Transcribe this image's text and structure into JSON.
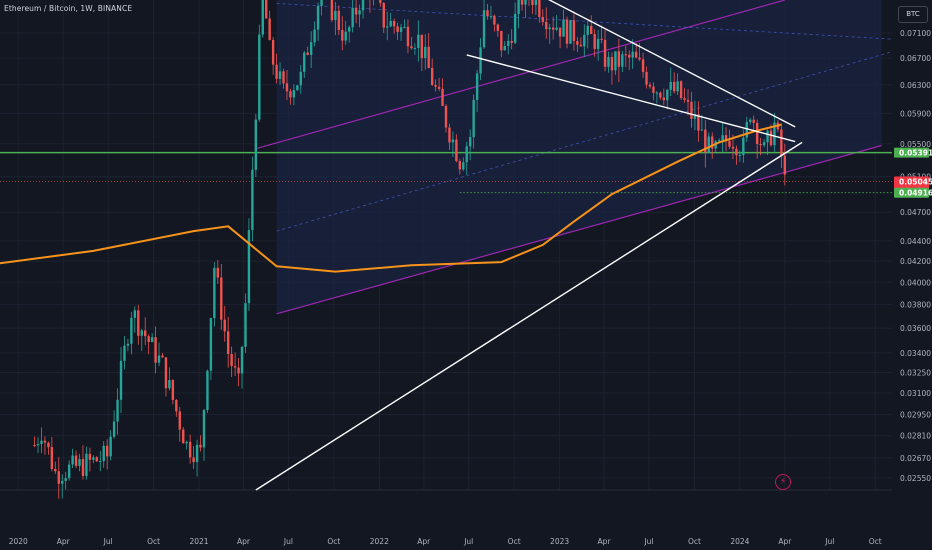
{
  "header": {
    "title": "Ethereum / Bitcoin, 1W, BINANCE",
    "currency": "BTC"
  },
  "colors": {
    "background": "#131722",
    "grid": "#1e2230",
    "up": "#26a69a",
    "down": "#ef5350",
    "ma": "#f7931a",
    "channel": "#9c27b0",
    "trend": "#ffffff",
    "support": "#4caf50",
    "channel_fill": "#1b2340"
  },
  "badges": {
    "support": {
      "label": "0.05391",
      "color": "#4caf50"
    },
    "current": {
      "label": "0.05045",
      "sub": "5d 19h",
      "color": "#f23645"
    },
    "low": {
      "label": "0.04916",
      "color": "#4caf50"
    }
  },
  "icons": {
    "flash": "flash-icon"
  },
  "chart_data": {
    "type": "candlestick",
    "title": "Ethereum / Bitcoin, 1W, BINANCE",
    "y_scale": "log",
    "ylim": [
      0.0248,
      0.0766
    ],
    "xlim": [
      "2019-11-25",
      "2024-11-04"
    ],
    "y_ticks": [
      "0.07100",
      "0.06700",
      "0.06300",
      "0.05900",
      "0.05500",
      "0.05100",
      "0.04700",
      "0.04400",
      "0.04200",
      "0.04000",
      "0.03800",
      "0.03600",
      "0.03400",
      "0.03250",
      "0.03100",
      "0.02950",
      "0.02810",
      "0.02670",
      "0.02550"
    ],
    "x_ticks": [
      {
        "label": "2020",
        "date": "2020-01-01"
      },
      {
        "label": "Apr",
        "date": "2020-04-01"
      },
      {
        "label": "Jul",
        "date": "2020-07-01"
      },
      {
        "label": "Oct",
        "date": "2020-10-01"
      },
      {
        "label": "2021",
        "date": "2021-01-01"
      },
      {
        "label": "Apr",
        "date": "2021-04-01"
      },
      {
        "label": "Jul",
        "date": "2021-07-01"
      },
      {
        "label": "Oct",
        "date": "2021-10-01"
      },
      {
        "label": "2022",
        "date": "2022-01-01"
      },
      {
        "label": "Apr",
        "date": "2022-04-01"
      },
      {
        "label": "Jul",
        "date": "2022-07-01"
      },
      {
        "label": "Oct",
        "date": "2022-10-01"
      },
      {
        "label": "2023",
        "date": "2023-01-01"
      },
      {
        "label": "Apr",
        "date": "2023-04-01"
      },
      {
        "label": "Jul",
        "date": "2023-07-01"
      },
      {
        "label": "Oct",
        "date": "2023-10-01"
      },
      {
        "label": "2024",
        "date": "2024-01-01"
      },
      {
        "label": "Apr",
        "date": "2024-04-01"
      },
      {
        "label": "Jul",
        "date": "2024-07-01"
      },
      {
        "label": "Oct",
        "date": "2024-10-01"
      }
    ],
    "candle_path": [
      [
        "2020-02-03",
        0.0275
      ],
      [
        "2020-02-17",
        0.0285
      ],
      [
        "2020-03-16",
        0.0258
      ],
      [
        "2020-05-04",
        0.0262
      ],
      [
        "2020-06-29",
        0.0268
      ],
      [
        "2020-08-17",
        0.0375
      ],
      [
        "2020-10-19",
        0.033
      ],
      [
        "2020-12-07",
        0.0275
      ],
      [
        "2021-01-04",
        0.027
      ],
      [
        "2021-02-01",
        0.0415
      ],
      [
        "2021-03-01",
        0.034
      ],
      [
        "2021-03-22",
        0.0315
      ],
      [
        "2021-04-05",
        0.038
      ],
      [
        "2021-04-19",
        0.052
      ],
      [
        "2021-05-10",
        0.079
      ],
      [
        "2021-05-24",
        0.068
      ],
      [
        "2021-06-21",
        0.062
      ],
      [
        "2021-07-26",
        0.064
      ],
      [
        "2021-09-06",
        0.079
      ],
      [
        "2021-10-25",
        0.07
      ],
      [
        "2021-12-06",
        0.08
      ],
      [
        "2022-01-10",
        0.073
      ],
      [
        "2022-02-07",
        0.072
      ],
      [
        "2022-03-21",
        0.07
      ],
      [
        "2022-05-16",
        0.058
      ],
      [
        "2022-06-13",
        0.053
      ],
      [
        "2022-07-04",
        0.056
      ],
      [
        "2022-08-01",
        0.075
      ],
      [
        "2022-09-12",
        0.068
      ],
      [
        "2022-10-24",
        0.079
      ],
      [
        "2022-12-12",
        0.073
      ],
      [
        "2023-01-23",
        0.071
      ],
      [
        "2023-03-13",
        0.07
      ],
      [
        "2023-04-10",
        0.066
      ],
      [
        "2023-05-29",
        0.067
      ],
      [
        "2023-07-17",
        0.0625
      ],
      [
        "2023-08-28",
        0.062
      ],
      [
        "2023-10-02",
        0.058
      ],
      [
        "2023-11-06",
        0.0535
      ],
      [
        "2023-12-11",
        0.056
      ],
      [
        "2024-01-08",
        0.0545
      ],
      [
        "2024-01-22",
        0.0595
      ],
      [
        "2024-02-19",
        0.054
      ],
      [
        "2024-03-11",
        0.0575
      ],
      [
        "2024-03-25",
        0.0535
      ],
      [
        "2024-04-01",
        0.05045
      ]
    ],
    "support_line": 0.05391,
    "last_price": 0.05045,
    "low_line": 0.04916,
    "moving_average": [
      [
        "2019-11-25",
        0.0418
      ],
      [
        "2020-06-01",
        0.043
      ],
      [
        "2020-12-21",
        0.045
      ],
      [
        "2021-03-01",
        0.0455
      ],
      [
        "2021-06-07",
        0.0415
      ],
      [
        "2021-10-04",
        0.041
      ],
      [
        "2022-03-07",
        0.0416
      ],
      [
        "2022-09-05",
        0.0419
      ],
      [
        "2022-11-28",
        0.0436
      ],
      [
        "2023-01-30",
        0.046
      ],
      [
        "2023-04-17",
        0.049
      ],
      [
        "2023-08-28",
        0.0528
      ],
      [
        "2023-11-20",
        0.0552
      ],
      [
        "2024-01-29",
        0.0566
      ],
      [
        "2024-03-25",
        0.0575
      ]
    ],
    "trend_lines": [
      {
        "from": [
          "2022-10-31",
          0.0785
        ],
        "to": [
          "2024-04-22",
          0.0572
        ]
      },
      {
        "from": [
          "2022-06-27",
          0.0675
        ],
        "to": [
          "2024-04-22",
          0.0553
        ]
      },
      {
        "from": [
          "2021-04-26",
          0.0248
        ],
        "to": [
          "2024-05-06",
          0.0552
        ]
      }
    ],
    "channel_lines": [
      {
        "style": "solid",
        "from": [
          "2021-04-26",
          0.0544
        ],
        "to": [
          "2024-04-01",
          0.0766
        ]
      },
      {
        "style": "dashed",
        "from": [
          "2021-06-07",
          0.076
        ],
        "to": [
          "2024-11-04",
          0.07
        ]
      },
      {
        "style": "dashed",
        "from": [
          "2021-06-07",
          0.045
        ],
        "to": [
          "2024-11-04",
          0.068
        ]
      },
      {
        "style": "solid",
        "from": [
          "2021-06-07",
          0.0372
        ],
        "to": [
          "2024-10-14",
          0.0548
        ]
      }
    ],
    "channel_area": {
      "from": "2021-06-07",
      "to": "2024-10-14",
      "ylim": [
        0.0395,
        0.0766
      ]
    }
  }
}
